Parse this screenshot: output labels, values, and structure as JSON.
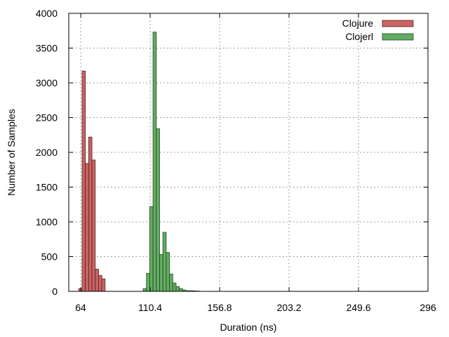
{
  "chart_data": {
    "type": "bar",
    "xlabel": "Duration (ns)",
    "ylabel": "Number of Samples",
    "xlim": [
      56,
      296
    ],
    "ylim": [
      0,
      4000
    ],
    "x_ticks": [
      "64",
      "110.4",
      "156.8",
      "203.2",
      "249.6",
      "296"
    ],
    "x_tick_values": [
      64,
      110.4,
      156.8,
      203.2,
      249.6,
      296
    ],
    "y_ticks": [
      "0",
      "500",
      "1000",
      "1500",
      "2000",
      "2500",
      "3000",
      "3500",
      "4000"
    ],
    "y_tick_values": [
      0,
      500,
      1000,
      1500,
      2000,
      2500,
      3000,
      3500,
      4000
    ],
    "grid": true,
    "legend_position": "top-right",
    "bin_width": 2.2,
    "series": [
      {
        "name": "Clojure",
        "color": "#c86464",
        "stroke": "#5a1e1e",
        "bins": [
          {
            "x": 63.8,
            "y": 40
          },
          {
            "x": 66.0,
            "y": 3170
          },
          {
            "x": 68.2,
            "y": 1840
          },
          {
            "x": 70.4,
            "y": 2220
          },
          {
            "x": 72.6,
            "y": 1890
          },
          {
            "x": 74.8,
            "y": 320
          },
          {
            "x": 77.0,
            "y": 230
          },
          {
            "x": 79.2,
            "y": 180
          }
        ]
      },
      {
        "name": "Clojerl",
        "color": "#64ac64",
        "stroke": "#1e4a1e",
        "bins": [
          {
            "x": 106.8,
            "y": 40
          },
          {
            "x": 109.0,
            "y": 260
          },
          {
            "x": 111.2,
            "y": 1220
          },
          {
            "x": 113.4,
            "y": 3730
          },
          {
            "x": 115.6,
            "y": 2340
          },
          {
            "x": 117.8,
            "y": 530
          },
          {
            "x": 120.0,
            "y": 850
          },
          {
            "x": 122.2,
            "y": 560
          },
          {
            "x": 124.4,
            "y": 250
          },
          {
            "x": 126.6,
            "y": 120
          },
          {
            "x": 128.8,
            "y": 70
          },
          {
            "x": 131.0,
            "y": 40
          },
          {
            "x": 133.2,
            "y": 20
          },
          {
            "x": 135.4,
            "y": 10
          },
          {
            "x": 137.6,
            "y": 10
          },
          {
            "x": 139.8,
            "y": 8
          },
          {
            "x": 142.0,
            "y": 5
          }
        ]
      }
    ]
  }
}
